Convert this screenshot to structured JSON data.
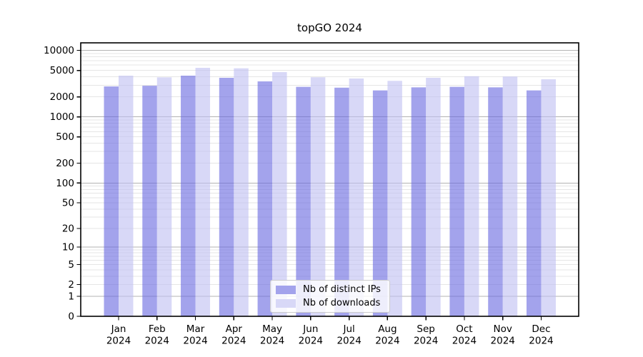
{
  "title": "topGO 2024",
  "chart_data": {
    "type": "bar",
    "title": "topGO 2024",
    "categories": [
      "Jan",
      "Feb",
      "Mar",
      "Apr",
      "May",
      "Jun",
      "Jul",
      "Aug",
      "Sep",
      "Oct",
      "Nov",
      "Dec"
    ],
    "year": "2024",
    "series": [
      {
        "name": "Nb of distinct IPs",
        "color": "#a3a3ec",
        "fill": "rgba(102,102,223,0.6)",
        "values": [
          2870,
          2940,
          4170,
          3870,
          3420,
          2830,
          2750,
          2500,
          2780,
          2830,
          2780,
          2500
        ]
      },
      {
        "name": "Nb of downloads",
        "color": "#d8d8f7",
        "fill": "rgba(190,190,242,0.6)",
        "values": [
          4170,
          3930,
          5470,
          5380,
          4710,
          3940,
          3780,
          3480,
          3870,
          4090,
          4040,
          3680
        ]
      }
    ],
    "y_ticks": [
      0,
      1,
      2,
      5,
      10,
      20,
      50,
      100,
      200,
      500,
      1000,
      2000,
      5000,
      10000
    ],
    "y_scale": "log10(1+x)",
    "ylim": [
      0,
      13000
    ],
    "grid": {
      "major_color": "#b3b3b3",
      "minor_color": "#e5e5e5",
      "on": true
    },
    "legend": {
      "position": "lower center",
      "entries": [
        "Nb of distinct IPs",
        "Nb of downloads"
      ]
    }
  }
}
